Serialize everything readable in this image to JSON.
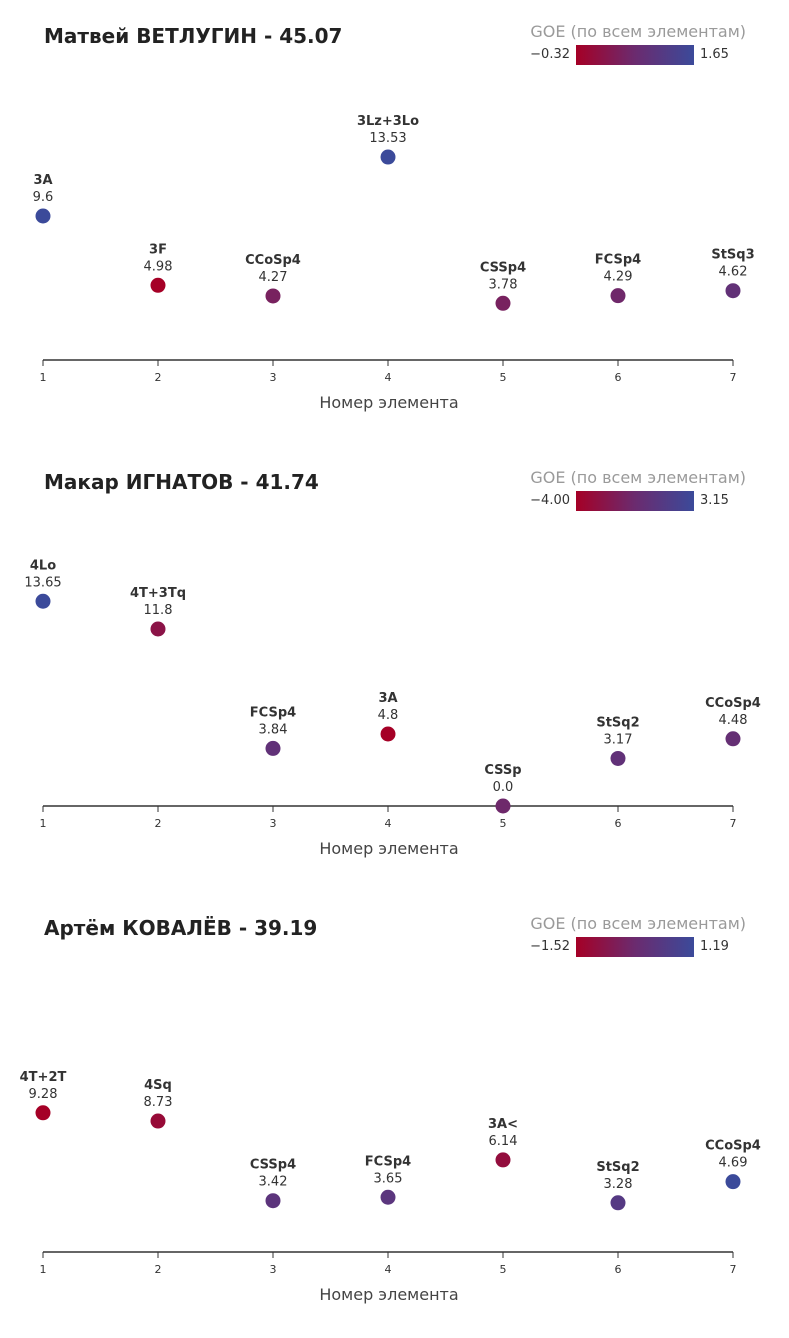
{
  "colors": {
    "low": "#a50026",
    "mid": "#6b2b6f",
    "high": "#3b4a9a",
    "axis": "#333333"
  },
  "chart_data": [
    {
      "type": "scatter",
      "title": "Матвей ВЕТЛУГИН - 45.07",
      "xlabel": "Номер элемента",
      "xticks": [
        1,
        2,
        3,
        4,
        5,
        6,
        7
      ],
      "ylim": [
        0,
        15
      ],
      "legend": {
        "title": "GOE (по всем элементам)",
        "min": "−0.32",
        "max": "1.65",
        "min_value": -0.32,
        "max_value": 1.65
      },
      "points": [
        {
          "x": 1,
          "name": "3A",
          "value": "9.6",
          "y": 9.6,
          "goe": 1.65
        },
        {
          "x": 2,
          "name": "3F",
          "value": "4.98",
          "y": 4.98,
          "goe": -0.32
        },
        {
          "x": 3,
          "name": "CCoSp4",
          "value": "4.27",
          "y": 4.27,
          "goe": 0.45
        },
        {
          "x": 4,
          "name": "3Lz+3Lo",
          "value": "13.53",
          "y": 13.53,
          "goe": 1.65
        },
        {
          "x": 5,
          "name": "CSSp4",
          "value": "3.78",
          "y": 3.78,
          "goe": 0.45
        },
        {
          "x": 6,
          "name": "FCSp4",
          "value": "4.29",
          "y": 4.29,
          "goe": 0.6
        },
        {
          "x": 7,
          "name": "StSq3",
          "value": "4.62",
          "y": 4.62,
          "goe": 0.85
        }
      ]
    },
    {
      "type": "scatter",
      "title": "Макар ИГНАТОВ - 41.74",
      "xlabel": "Номер элемента",
      "xticks": [
        1,
        2,
        3,
        4,
        5,
        6,
        7
      ],
      "ylim": [
        0,
        15
      ],
      "legend": {
        "title": "GOE (по всем элементам)",
        "min": "−4.00",
        "max": "3.15",
        "min_value": -4.0,
        "max_value": 3.15
      },
      "points": [
        {
          "x": 1,
          "name": "4Lo",
          "value": "13.65",
          "y": 13.65,
          "goe": 3.15
        },
        {
          "x": 2,
          "name": "4T+3Tq",
          "value": "11.8",
          "y": 11.8,
          "goe": -2.4
        },
        {
          "x": 3,
          "name": "FCSp4",
          "value": "3.84",
          "y": 3.84,
          "goe": 0.3
        },
        {
          "x": 4,
          "name": "3A",
          "value": "4.8",
          "y": 4.8,
          "goe": -4.0
        },
        {
          "x": 5,
          "name": "CSSp",
          "value": "0.0",
          "y": 0.0,
          "goe": -0.6
        },
        {
          "x": 6,
          "name": "StSq2",
          "value": "3.17",
          "y": 3.17,
          "goe": 0.3
        },
        {
          "x": 7,
          "name": "CCoSp4",
          "value": "4.48",
          "y": 4.48,
          "goe": 0.0
        }
      ]
    },
    {
      "type": "scatter",
      "title": "Артём КОВАЛЁВ - 39.19",
      "xlabel": "Номер элемента",
      "xticks": [
        1,
        2,
        3,
        4,
        5,
        6,
        7
      ],
      "ylim": [
        0,
        15
      ],
      "legend": {
        "title": "GOE (по всем элементам)",
        "min": "−1.52",
        "max": "1.19",
        "min_value": -1.52,
        "max_value": 1.19
      },
      "points": [
        {
          "x": 1,
          "name": "4T+2T",
          "value": "9.28",
          "y": 9.28,
          "goe": -1.52
        },
        {
          "x": 2,
          "name": "4Sq",
          "value": "8.73",
          "y": 8.73,
          "goe": -1.2
        },
        {
          "x": 3,
          "name": "CSSp4",
          "value": "3.42",
          "y": 3.42,
          "goe": 0.25
        },
        {
          "x": 4,
          "name": "FCSp4",
          "value": "3.65",
          "y": 3.65,
          "goe": 0.3
        },
        {
          "x": 5,
          "name": "3A<",
          "value": "6.14",
          "y": 6.14,
          "goe": -1.1
        },
        {
          "x": 6,
          "name": "StSq2",
          "value": "3.28",
          "y": 3.28,
          "goe": 0.45
        },
        {
          "x": 7,
          "name": "CCoSp4",
          "value": "4.69",
          "y": 4.69,
          "goe": 1.19
        }
      ]
    }
  ]
}
